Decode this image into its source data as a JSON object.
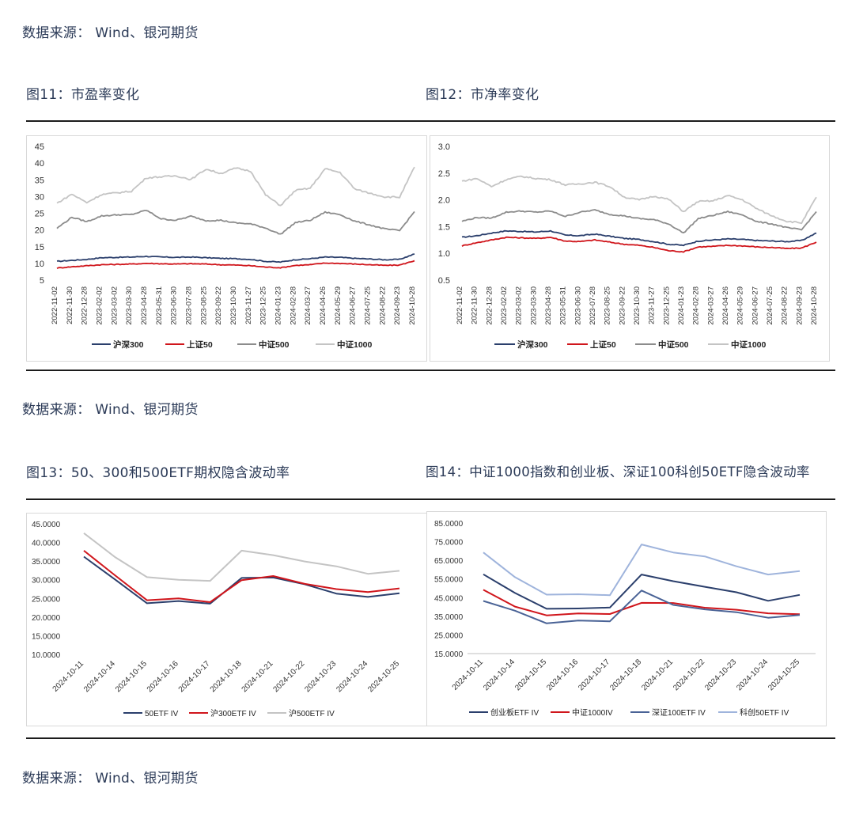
{
  "source_text": "数据来源： Wind、银河期货",
  "captions": {
    "fig11": "图11：市盈率变化",
    "fig12": "图12：市净率变化",
    "fig13": "图13：50、300和500ETF期权隐含波动率",
    "fig14": "图14：中证1000指数和创业板、深证100科创50ETF隐含波动率"
  },
  "colors": {
    "navy": "#2b3f6c",
    "red": "#d0161c",
    "gray": "#8c8c8c",
    "light_gray": "#c4c4c4",
    "slate_blue": "#4a6396",
    "light_blue": "#9fb4dc"
  },
  "chart_data": [
    {
      "id": "pe",
      "type": "line",
      "x_ticks": [
        "2022-11-02",
        "2022-11-30",
        "2022-12-28",
        "2023-02-02",
        "2023-03-02",
        "2023-03-30",
        "2023-04-28",
        "2023-05-31",
        "2023-06-30",
        "2023-07-28",
        "2023-08-25",
        "2023-09-22",
        "2023-10-30",
        "2023-11-27",
        "2023-12-25",
        "2024-01-23",
        "2024-02-28",
        "2024-03-27",
        "2024-04-26",
        "2024-05-29",
        "2024-06-27",
        "2024-07-25",
        "2024-08-22",
        "2024-09-23",
        "2024-10-28"
      ],
      "y_ticks": [
        "45",
        "40",
        "35",
        "30",
        "25",
        "20",
        "15",
        "10",
        "5"
      ],
      "ylim": [
        5,
        45
      ],
      "legend": [
        "沪深300",
        "上证50",
        "中证500",
        "中证1000"
      ],
      "series": [
        {
          "name": "沪深300",
          "color": "navy",
          "values": [
            10.6,
            10.9,
            11.2,
            11.7,
            11.8,
            11.9,
            12.1,
            11.9,
            11.8,
            11.9,
            11.7,
            11.5,
            11.4,
            11.2,
            10.6,
            10.4,
            11.1,
            11.4,
            11.9,
            11.8,
            11.5,
            11.3,
            11.1,
            11.2,
            12.8
          ]
        },
        {
          "name": "上证50",
          "color": "red",
          "values": [
            8.6,
            9.0,
            9.3,
            9.6,
            9.7,
            9.8,
            10.0,
            9.9,
            9.8,
            9.9,
            9.8,
            9.6,
            9.5,
            9.3,
            8.9,
            8.7,
            9.4,
            9.6,
            10.1,
            10.0,
            9.8,
            9.6,
            9.4,
            9.5,
            10.8
          ]
        },
        {
          "name": "中证500",
          "color": "gray",
          "values": [
            20.5,
            23.8,
            22.5,
            24.2,
            24.5,
            24.6,
            25.9,
            23.3,
            22.9,
            24.1,
            22.8,
            22.9,
            22.1,
            21.8,
            20.6,
            18.7,
            22.2,
            22.9,
            25.3,
            24.6,
            22.6,
            21.5,
            20.3,
            19.8,
            25.5
          ]
        },
        {
          "name": "中证1000",
          "color": "light_gray",
          "values": [
            28.0,
            30.7,
            28.2,
            30.6,
            31.1,
            31.6,
            35.6,
            35.9,
            36.2,
            35.1,
            38.2,
            36.9,
            38.5,
            37.6,
            30.5,
            27.3,
            31.8,
            32.5,
            38.3,
            37.2,
            32.2,
            31.0,
            29.9,
            29.8,
            38.8
          ]
        }
      ]
    },
    {
      "id": "pb",
      "type": "line",
      "x_ticks": [
        "2022-11-02",
        "2022-11-30",
        "2022-12-28",
        "2023-02-02",
        "2023-03-02",
        "2023-03-30",
        "2023-04-28",
        "2023-05-31",
        "2023-06-30",
        "2023-07-28",
        "2023-08-25",
        "2023-09-22",
        "2023-10-30",
        "2023-11-27",
        "2023-12-25",
        "2024-01-23",
        "2024-02-28",
        "2024-03-27",
        "2024-04-26",
        "2024-05-29",
        "2024-06-27",
        "2024-07-25",
        "2024-08-22",
        "2024-09-23",
        "2024-10-28"
      ],
      "y_ticks": [
        "3.0",
        "2.5",
        "2.0",
        "1.5",
        "1.0",
        "0.5"
      ],
      "ylim": [
        0.5,
        3.0
      ],
      "legend": [
        "沪深300",
        "上证50",
        "中证500",
        "中证1000"
      ],
      "series": [
        {
          "name": "沪深300",
          "color": "navy",
          "values": [
            1.3,
            1.33,
            1.38,
            1.42,
            1.41,
            1.4,
            1.42,
            1.34,
            1.33,
            1.36,
            1.32,
            1.28,
            1.26,
            1.22,
            1.17,
            1.15,
            1.23,
            1.25,
            1.27,
            1.26,
            1.24,
            1.23,
            1.22,
            1.24,
            1.38
          ]
        },
        {
          "name": "上证50",
          "color": "red",
          "values": [
            1.14,
            1.2,
            1.25,
            1.3,
            1.29,
            1.28,
            1.3,
            1.23,
            1.22,
            1.25,
            1.21,
            1.17,
            1.15,
            1.11,
            1.05,
            1.03,
            1.12,
            1.13,
            1.15,
            1.14,
            1.12,
            1.11,
            1.09,
            1.1,
            1.21
          ]
        },
        {
          "name": "中证500",
          "color": "gray",
          "values": [
            1.6,
            1.67,
            1.66,
            1.77,
            1.79,
            1.77,
            1.79,
            1.69,
            1.77,
            1.81,
            1.73,
            1.7,
            1.65,
            1.63,
            1.55,
            1.38,
            1.65,
            1.71,
            1.78,
            1.72,
            1.59,
            1.55,
            1.48,
            1.44,
            1.78
          ]
        },
        {
          "name": "中证1000",
          "color": "light_gray",
          "values": [
            2.35,
            2.4,
            2.25,
            2.38,
            2.44,
            2.4,
            2.38,
            2.28,
            2.3,
            2.33,
            2.25,
            2.05,
            2.0,
            2.07,
            2.01,
            1.78,
            1.97,
            1.98,
            2.08,
            2.0,
            1.83,
            1.7,
            1.6,
            1.57,
            2.05
          ]
        }
      ]
    },
    {
      "id": "iv1",
      "type": "line",
      "categories": [
        "2024-10-11",
        "2024-10-14",
        "2024-10-15",
        "2024-10-16",
        "2024-10-17",
        "2024-10-18",
        "2024-10-21",
        "2024-10-22",
        "2024-10-23",
        "2024-10-24",
        "2024-10-25"
      ],
      "y_ticks": [
        "45.0000",
        "40.0000",
        "35.0000",
        "30.0000",
        "25.0000",
        "20.0000",
        "15.0000",
        "10.0000"
      ],
      "ylim": [
        10,
        45
      ],
      "legend": [
        "50ETF IV",
        "沪300ETF IV",
        "沪500ETF IV"
      ],
      "series": [
        {
          "name": "50ETF IV",
          "color": "navy",
          "values": [
            36.2,
            30.0,
            23.7,
            24.3,
            23.6,
            30.5,
            30.6,
            28.8,
            26.3,
            25.4,
            26.4
          ]
        },
        {
          "name": "沪300ETF IV",
          "color": "red",
          "values": [
            37.8,
            31.1,
            24.5,
            25.0,
            24.0,
            29.9,
            31.0,
            28.9,
            27.5,
            26.7,
            27.7
          ]
        },
        {
          "name": "沪500ETF IV",
          "color": "light_gray",
          "values": [
            42.5,
            36.0,
            30.7,
            30.0,
            29.7,
            37.8,
            36.6,
            34.9,
            33.6,
            31.6,
            32.4
          ]
        }
      ]
    },
    {
      "id": "iv2",
      "type": "line",
      "categories": [
        "2024-10-11",
        "2024-10-14",
        "2024-10-15",
        "2024-10-16",
        "2024-10-17",
        "2024-10-18",
        "2024-10-21",
        "2024-10-22",
        "2024-10-23",
        "2024-10-24",
        "2024-10-25"
      ],
      "y_ticks": [
        "85.0000",
        "75.0000",
        "65.0000",
        "55.0000",
        "45.0000",
        "35.0000",
        "25.0000",
        "15.0000"
      ],
      "ylim": [
        15,
        85
      ],
      "legend": [
        "创业板ETF IV",
        "中证1000IV",
        "深证100ETF IV",
        "科创50ETF IV"
      ],
      "series": [
        {
          "name": "创业板ETF IV",
          "color": "navy",
          "values": [
            57.5,
            47.5,
            39.0,
            39.2,
            39.7,
            57.4,
            53.8,
            50.8,
            47.9,
            43.3,
            46.5
          ]
        },
        {
          "name": "中证1000IV",
          "color": "red",
          "values": [
            49.2,
            40.2,
            35.5,
            36.5,
            36.2,
            42.2,
            42.1,
            39.6,
            38.5,
            36.6,
            36.1
          ]
        },
        {
          "name": "深证100ETF IV",
          "color": "slate_blue",
          "values": [
            43.2,
            38.0,
            31.2,
            32.7,
            32.3,
            48.8,
            41.1,
            38.7,
            37.2,
            34.2,
            35.7
          ]
        },
        {
          "name": "科创50ETF IV",
          "color": "light_blue",
          "values": [
            69.2,
            56.0,
            46.6,
            46.8,
            46.3,
            73.5,
            69.2,
            67.1,
            61.8,
            57.4,
            59.2
          ]
        }
      ]
    }
  ]
}
